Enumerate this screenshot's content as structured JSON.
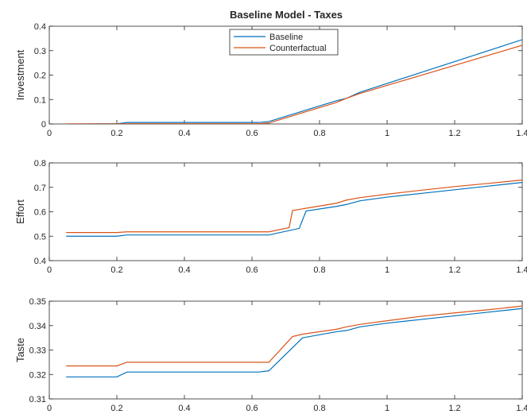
{
  "figure": {
    "title": "Baseline Model - Taxes"
  },
  "legend": {
    "entries": [
      {
        "name": "Baseline",
        "color": "#0072BD"
      },
      {
        "name": "Counterfactual",
        "color": "#D95319"
      }
    ]
  },
  "chart_data": [
    {
      "type": "line",
      "title": "Baseline Model - Taxes",
      "xlabel": "",
      "ylabel": "Investment",
      "xlim": [
        0,
        1.4
      ],
      "ylim": [
        0,
        0.4
      ],
      "xticks": [
        0,
        0.2,
        0.4,
        0.6,
        0.8,
        1,
        1.2,
        1.4
      ],
      "xtick_labels": [
        "0",
        "0.2",
        "0.4",
        "0.6",
        "0.8",
        "1",
        "1.2",
        "1.4"
      ],
      "yticks": [
        0,
        0.1,
        0.2,
        0.3,
        0.4
      ],
      "ytick_labels": [
        "0",
        "0.1",
        "0.2",
        "0.3",
        "0.4"
      ],
      "legend": "top-center",
      "series": [
        {
          "name": "Baseline",
          "color": "#0072BD",
          "x": [
            0.05,
            0.2,
            0.22,
            0.23,
            0.62,
            0.65,
            0.85,
            0.88,
            0.92,
            1.4
          ],
          "y": [
            0.0,
            0.001,
            0.004,
            0.006,
            0.006,
            0.01,
            0.095,
            0.105,
            0.13,
            0.345
          ]
        },
        {
          "name": "Counterfactual",
          "color": "#D95319",
          "x": [
            0.05,
            0.2,
            0.23,
            0.62,
            0.65,
            0.85,
            0.88,
            0.92,
            1.4
          ],
          "y": [
            0.0,
            0.0,
            0.001,
            0.001,
            0.004,
            0.088,
            0.105,
            0.125,
            0.322
          ]
        }
      ]
    },
    {
      "type": "line",
      "xlabel": "",
      "ylabel": "Effort",
      "xlim": [
        0,
        1.4
      ],
      "ylim": [
        0.4,
        0.8
      ],
      "xticks": [
        0,
        0.2,
        0.4,
        0.6,
        0.8,
        1,
        1.2,
        1.4
      ],
      "xtick_labels": [
        "0",
        "0.2",
        "0.4",
        "0.6",
        "0.8",
        "1",
        "1.2",
        "1.4"
      ],
      "yticks": [
        0.4,
        0.5,
        0.6,
        0.7,
        0.8
      ],
      "ytick_labels": [
        "0.4",
        "0.5",
        "0.6",
        "0.7",
        "0.8"
      ],
      "series": [
        {
          "name": "Baseline",
          "color": "#0072BD",
          "x": [
            0.05,
            0.2,
            0.23,
            0.62,
            0.65,
            0.74,
            0.76,
            0.85,
            0.88,
            0.92,
            1.0,
            1.1,
            1.2,
            1.3,
            1.4
          ],
          "y": [
            0.5,
            0.5,
            0.505,
            0.505,
            0.505,
            0.532,
            0.603,
            0.622,
            0.63,
            0.645,
            0.66,
            0.675,
            0.69,
            0.705,
            0.72
          ]
        },
        {
          "name": "Counterfactual",
          "color": "#D95319",
          "x": [
            0.05,
            0.2,
            0.23,
            0.62,
            0.65,
            0.71,
            0.72,
            0.75,
            0.85,
            0.88,
            0.92,
            1.0,
            1.1,
            1.2,
            1.3,
            1.4
          ],
          "y": [
            0.515,
            0.515,
            0.518,
            0.518,
            0.518,
            0.535,
            0.605,
            0.612,
            0.635,
            0.648,
            0.658,
            0.672,
            0.688,
            0.703,
            0.716,
            0.73
          ]
        }
      ]
    },
    {
      "type": "line",
      "xlabel": "",
      "ylabel": "Taste",
      "xlim": [
        0,
        1.4
      ],
      "ylim": [
        0.31,
        0.35
      ],
      "xticks": [
        0,
        0.2,
        0.4,
        0.6,
        0.8,
        1,
        1.2,
        1.4
      ],
      "xtick_labels": [
        "0",
        "0.2",
        "0.4",
        "0.6",
        "0.8",
        "1",
        "1.2",
        "1.4"
      ],
      "yticks": [
        0.31,
        0.32,
        0.33,
        0.34,
        0.35
      ],
      "ytick_labels": [
        "0.31",
        "0.32",
        "0.33",
        "0.34",
        "0.35"
      ],
      "series": [
        {
          "name": "Baseline",
          "color": "#0072BD",
          "x": [
            0.05,
            0.2,
            0.23,
            0.62,
            0.65,
            0.75,
            0.85,
            0.88,
            0.92,
            1.0,
            1.1,
            1.2,
            1.3,
            1.4
          ],
          "y": [
            0.319,
            0.319,
            0.321,
            0.321,
            0.3215,
            0.335,
            0.3375,
            0.338,
            0.3395,
            0.341,
            0.3425,
            0.344,
            0.3455,
            0.347
          ]
        },
        {
          "name": "Counterfactual",
          "color": "#D95319",
          "x": [
            0.05,
            0.2,
            0.23,
            0.62,
            0.65,
            0.72,
            0.75,
            0.85,
            0.88,
            0.92,
            1.0,
            1.1,
            1.2,
            1.3,
            1.4
          ],
          "y": [
            0.3235,
            0.3235,
            0.325,
            0.325,
            0.325,
            0.3355,
            0.3365,
            0.3385,
            0.3395,
            0.3405,
            0.342,
            0.3438,
            0.3452,
            0.3465,
            0.348
          ]
        }
      ]
    }
  ]
}
